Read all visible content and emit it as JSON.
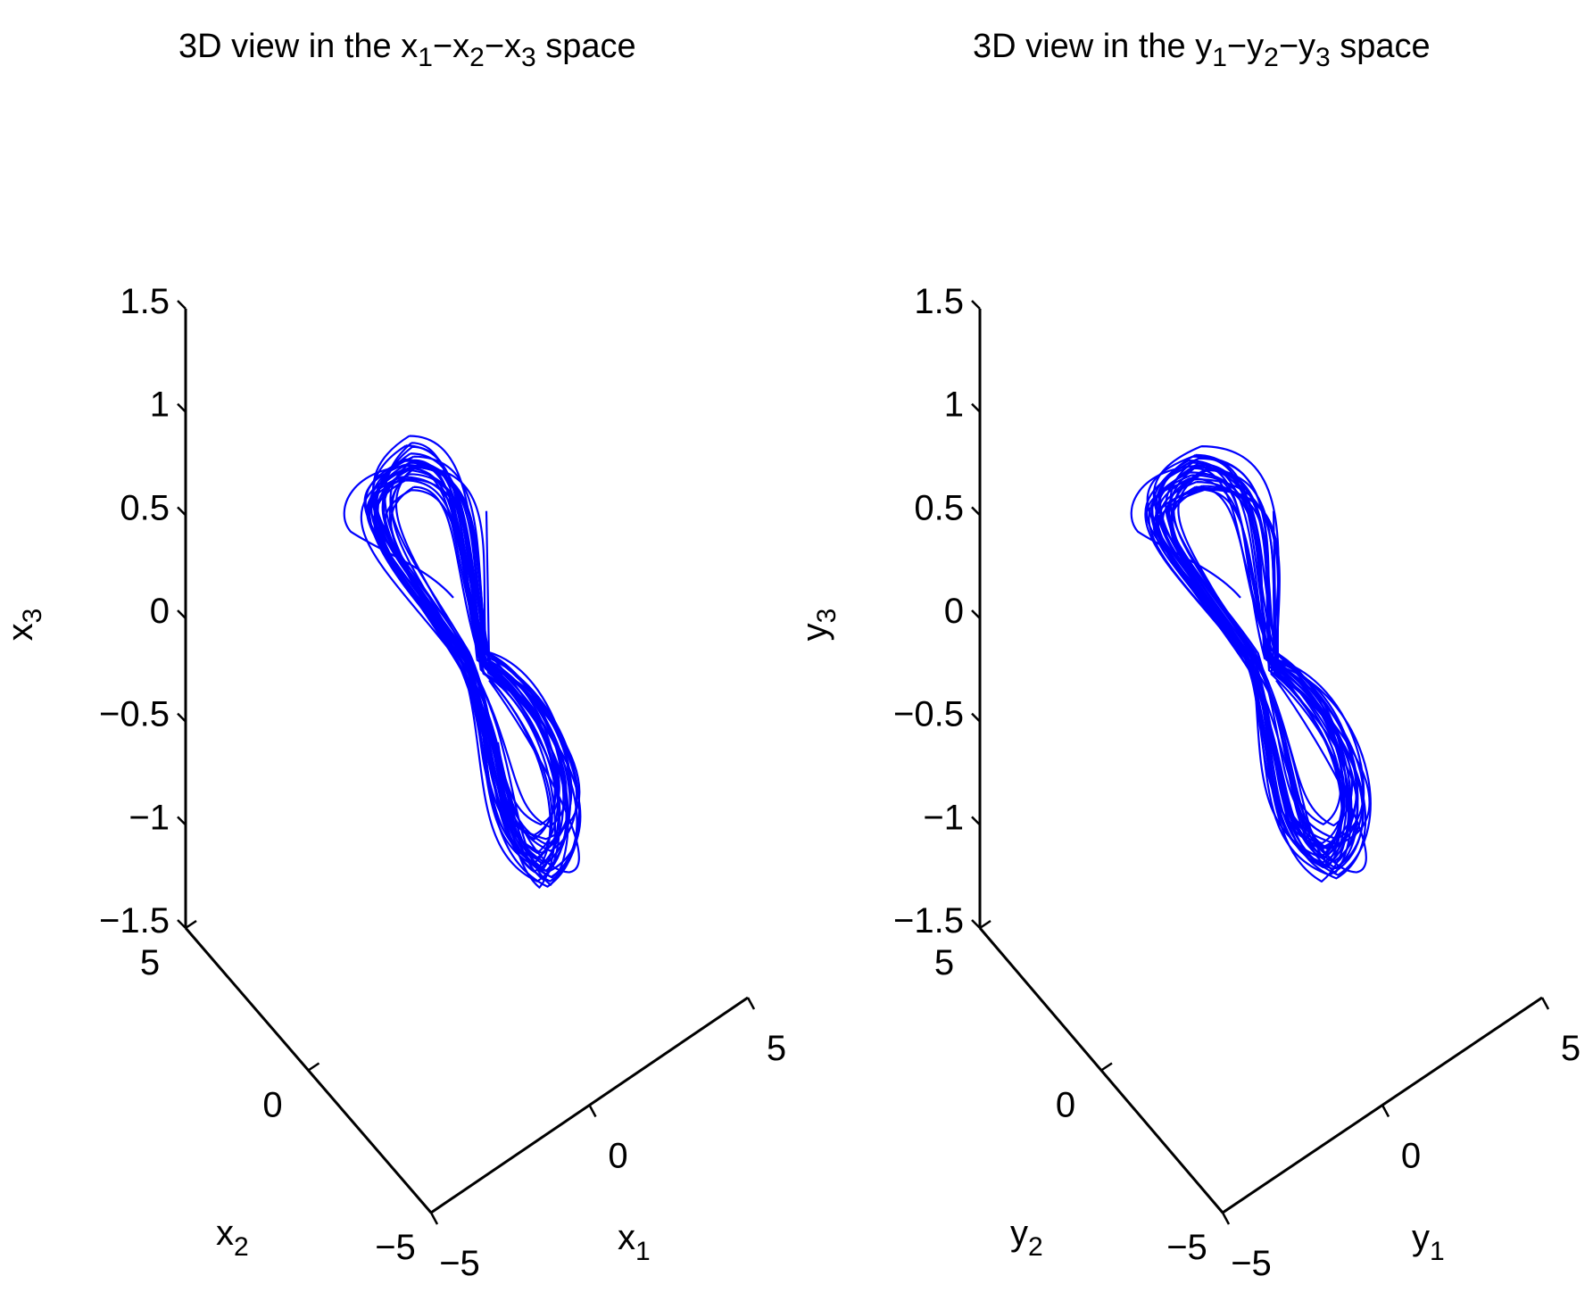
{
  "chart_data": [
    {
      "type": "line3d",
      "title": {
        "main": "3D view in the x",
        "parts": [
          {
            "text": "3D view in the x"
          },
          {
            "sub": "1"
          },
          {
            "text": "−x"
          },
          {
            "sub": "2"
          },
          {
            "text": "−x"
          },
          {
            "sub": "3"
          },
          {
            "text": " space"
          }
        ]
      },
      "xlabel": {
        "base": "x",
        "sub": "1"
      },
      "ylabel": {
        "base": "x",
        "sub": "2"
      },
      "zlabel": {
        "base": "x",
        "sub": "3"
      },
      "xlim": [
        -5,
        5
      ],
      "ylim": [
        -5,
        5
      ],
      "zlim": [
        -1.5,
        1.5
      ],
      "x_ticks": [
        "−5",
        "0",
        "5"
      ],
      "y_ticks": [
        "−5",
        "0",
        "5"
      ],
      "z_ticks": [
        "−1.5",
        "−1",
        "−0.5",
        "0",
        "0.5",
        "1",
        "1.5"
      ],
      "series": [
        {
          "color": "#0000ff",
          "z_range_shown": [
            -1.23,
            0.75
          ]
        }
      ]
    },
    {
      "type": "line3d",
      "title": {
        "parts": [
          {
            "text": "3D view in the y"
          },
          {
            "sub": "1"
          },
          {
            "text": "−y"
          },
          {
            "sub": "2"
          },
          {
            "text": "−y"
          },
          {
            "sub": "3"
          },
          {
            "text": " space"
          }
        ]
      },
      "xlabel": {
        "base": "y",
        "sub": "1"
      },
      "ylabel": {
        "base": "y",
        "sub": "2"
      },
      "zlabel": {
        "base": "y",
        "sub": "3"
      },
      "xlim": [
        -5,
        5
      ],
      "ylim": [
        -5,
        5
      ],
      "zlim": [
        -1.5,
        1.5
      ],
      "x_ticks": [
        "−5",
        "0",
        "5"
      ],
      "y_ticks": [
        "−5",
        "0",
        "5"
      ],
      "z_ticks": [
        "−1.5",
        "−1",
        "−0.5",
        "0",
        "0.5",
        "1",
        "1.5"
      ],
      "series": [
        {
          "color": "#0000ff",
          "z_range_shown": [
            -1.2,
            0.75
          ]
        }
      ]
    }
  ]
}
